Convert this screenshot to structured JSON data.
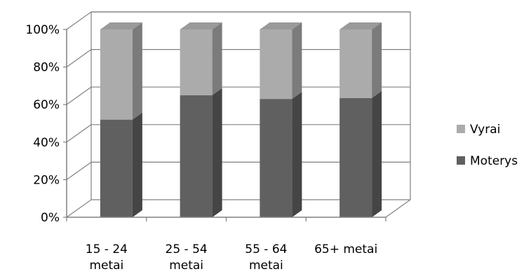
{
  "chart_data": {
    "type": "bar",
    "stacked": true,
    "percent": true,
    "three_d": true,
    "categories": [
      "15 - 24 metai",
      "25 - 54 metai",
      "55 - 64 metai",
      "65+ metai"
    ],
    "series": [
      {
        "name": "Moterys",
        "values": [
          52,
          65,
          63,
          63.5
        ],
        "color": "#606060"
      },
      {
        "name": "Vyrai",
        "values": [
          48,
          35,
          37,
          36.5
        ],
        "color": "#ababab"
      }
    ],
    "ylim": [
      0,
      100
    ],
    "y_ticks": [
      "0%",
      "20%",
      "40%",
      "60%",
      "80%",
      "100%"
    ],
    "grid": true,
    "legend_position": "right"
  }
}
